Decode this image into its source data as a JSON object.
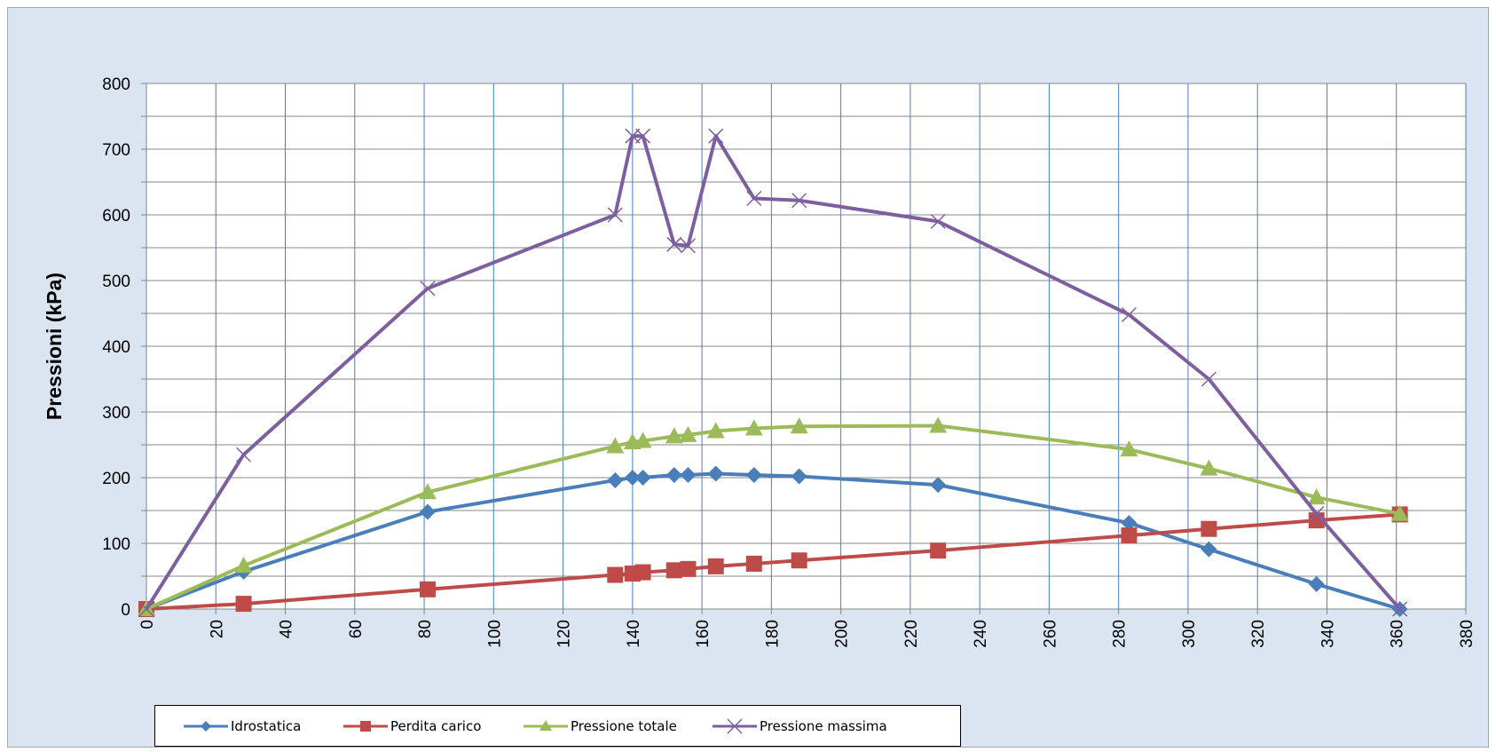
{
  "chart_data": {
    "type": "line",
    "title": "",
    "xlabel": "",
    "ylabel": "Pressioni (kPa)",
    "xlim": [
      0,
      380
    ],
    "ylim": [
      0,
      800
    ],
    "x_ticks": [
      0,
      20,
      40,
      60,
      80,
      100,
      120,
      140,
      160,
      180,
      200,
      220,
      240,
      260,
      280,
      300,
      320,
      340,
      360,
      380
    ],
    "y_ticks": [
      0,
      100,
      200,
      300,
      400,
      500,
      600,
      700,
      800
    ],
    "grid": true,
    "legend_position": "bottom",
    "series": [
      {
        "name": "Idrostatica",
        "color": "#4a7ebb",
        "marker": "diamond",
        "x": [
          0,
          28,
          81,
          135,
          140,
          143,
          152,
          156,
          164,
          175,
          188,
          228,
          283,
          306,
          337,
          361
        ],
        "values": [
          0,
          57,
          148,
          196,
          200,
          200,
          204,
          204,
          206,
          204,
          202,
          189,
          131,
          91,
          38,
          0
        ]
      },
      {
        "name": "Perdita carico",
        "color": "#be4b48",
        "marker": "square",
        "x": [
          0,
          28,
          81,
          135,
          140,
          143,
          152,
          156,
          164,
          175,
          188,
          228,
          283,
          306,
          337,
          361
        ],
        "values": [
          0,
          8,
          30,
          52,
          54,
          56,
          59,
          61,
          65,
          69,
          74,
          89,
          112,
          122,
          135,
          144
        ]
      },
      {
        "name": "Pressione totale",
        "color": "#9bbb59",
        "marker": "triangle",
        "x": [
          0,
          28,
          81,
          135,
          140,
          143,
          152,
          156,
          164,
          175,
          188,
          228,
          283,
          306,
          337,
          361
        ],
        "values": [
          0,
          66,
          178,
          248,
          254,
          256,
          263,
          265,
          271,
          275,
          278,
          279,
          243,
          214,
          170,
          145
        ]
      },
      {
        "name": "Pressione massima",
        "color": "#7d5fa0",
        "marker": "x",
        "x": [
          0,
          28,
          81,
          135,
          140,
          143,
          152,
          156,
          164,
          175,
          188,
          228,
          283,
          306,
          337,
          361
        ],
        "values": [
          0,
          235,
          488,
          600,
          720,
          720,
          555,
          553,
          720,
          625,
          622,
          590,
          448,
          350,
          145,
          0
        ]
      }
    ]
  }
}
